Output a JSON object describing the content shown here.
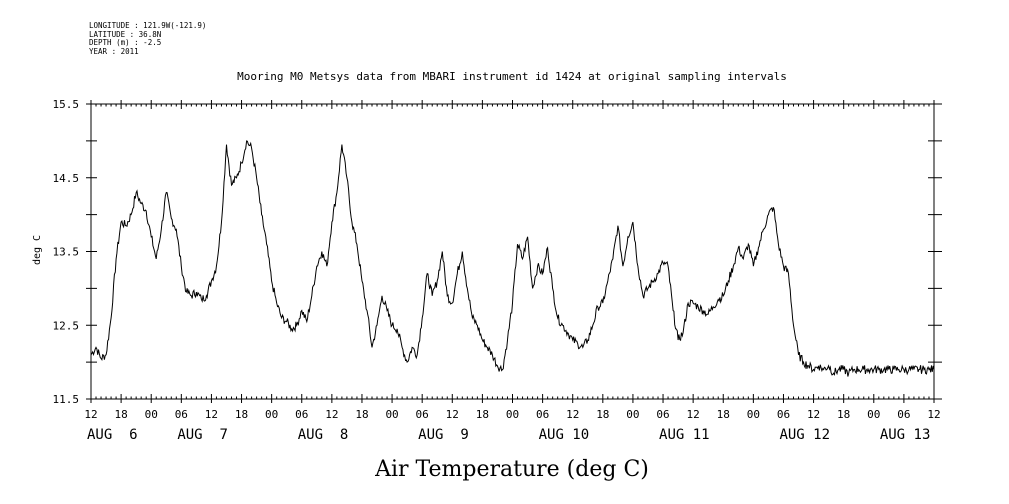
{
  "meta": {
    "longitude": "LONGITUDE : 121.9W(-121.9)",
    "latitude": "LATITUDE : 36.8N",
    "depth": "DEPTH (m) : -2.5",
    "year": "YEAR : 2011"
  },
  "chart_data": {
    "type": "line",
    "title": "Mooring M0 Metsys data from MBARI instrument id 1424 at original sampling intervals",
    "xlabel": "Air Temperature (deg C)",
    "ylabel": "deg C",
    "ylim": [
      11.5,
      15.5
    ],
    "yticks": [
      "15.5",
      "14.5",
      "13.5",
      "12.5",
      "11.5"
    ],
    "xlim_hours": [
      0,
      168
    ],
    "x_unit": "hours since AUG 6 12:00, 2011",
    "hour_ticks": [
      "12",
      "18",
      "00",
      "06",
      "12",
      "18",
      "00",
      "06",
      "12",
      "18",
      "00",
      "06",
      "12",
      "18",
      "00",
      "06",
      "12",
      "18",
      "00",
      "06",
      "12",
      "18",
      "00",
      "06",
      "12",
      "18",
      "00",
      "06",
      "12"
    ],
    "day_labels": [
      {
        "label": "AUG  6",
        "hour": 0
      },
      {
        "label": "AUG  7",
        "hour": 18
      },
      {
        "label": "AUG  8",
        "hour": 42
      },
      {
        "label": "AUG  9",
        "hour": 66
      },
      {
        "label": "AUG 10",
        "hour": 90
      },
      {
        "label": "AUG 11",
        "hour": 114
      },
      {
        "label": "AUG 12",
        "hour": 138
      },
      {
        "label": "AUG 13",
        "hour": 158
      }
    ],
    "grid": false,
    "series": [
      {
        "x": [
          0,
          1,
          2,
          3,
          4,
          5,
          6,
          7,
          8,
          9,
          10,
          11,
          12,
          13,
          14,
          15,
          16,
          17,
          18,
          19,
          20,
          21,
          22,
          23,
          24,
          25,
          26,
          27,
          28,
          29,
          30,
          31,
          32,
          33,
          34,
          35,
          36,
          37,
          38,
          39,
          40,
          41,
          42,
          43,
          44,
          45,
          46,
          47,
          48,
          49,
          50,
          51,
          52,
          53,
          54,
          55,
          56,
          57,
          58,
          59,
          60,
          61,
          62,
          63,
          64,
          65,
          66,
          67,
          68,
          69,
          70,
          71,
          72,
          73,
          74,
          75,
          76,
          77,
          78,
          79,
          80,
          81,
          82,
          83,
          84,
          85,
          86,
          87,
          88,
          89,
          90,
          91,
          92,
          93,
          94,
          95,
          96,
          97,
          98,
          99,
          100,
          101,
          102,
          103,
          104,
          105,
          106,
          107,
          108,
          109,
          110,
          111,
          112,
          113,
          114,
          115,
          116,
          117,
          118,
          119,
          120,
          121,
          122,
          123,
          124,
          125,
          126,
          127,
          128,
          129,
          130,
          131,
          132,
          133,
          134,
          135,
          136,
          137,
          138,
          139,
          140,
          141,
          142,
          143,
          144,
          145,
          146,
          147,
          148,
          149,
          150,
          151,
          152,
          153,
          154,
          155,
          156,
          157,
          158,
          159,
          160,
          161,
          162,
          163,
          164,
          165,
          166,
          167,
          168
        ],
        "y": [
          12.1,
          12.2,
          12.05,
          12.1,
          12.6,
          13.4,
          13.9,
          13.85,
          14.0,
          14.3,
          14.15,
          14.05,
          13.7,
          13.4,
          13.8,
          14.3,
          13.95,
          13.8,
          13.3,
          12.95,
          12.9,
          12.95,
          12.85,
          12.9,
          13.1,
          13.3,
          13.9,
          14.95,
          14.4,
          14.5,
          14.7,
          15.0,
          14.9,
          14.5,
          14.0,
          13.6,
          13.1,
          12.8,
          12.6,
          12.55,
          12.45,
          12.5,
          12.7,
          12.55,
          12.9,
          13.3,
          13.5,
          13.3,
          13.9,
          14.3,
          14.95,
          14.5,
          13.9,
          13.6,
          13.1,
          12.7,
          12.2,
          12.5,
          12.9,
          12.7,
          12.5,
          12.45,
          12.2,
          12.0,
          12.2,
          12.1,
          12.6,
          13.2,
          12.9,
          13.1,
          13.5,
          12.9,
          12.8,
          13.2,
          13.5,
          13.0,
          12.6,
          12.5,
          12.3,
          12.2,
          12.1,
          11.95,
          11.9,
          12.3,
          12.8,
          13.6,
          13.4,
          13.7,
          13.0,
          13.3,
          13.2,
          13.55,
          13.0,
          12.6,
          12.5,
          12.4,
          12.3,
          12.25,
          12.2,
          12.3,
          12.5,
          12.75,
          12.8,
          13.1,
          13.4,
          13.85,
          13.3,
          13.7,
          13.9,
          13.3,
          12.9,
          13.0,
          13.1,
          13.2,
          13.35,
          13.3,
          12.7,
          12.3,
          12.4,
          12.8,
          12.8,
          12.75,
          12.7,
          12.65,
          12.75,
          12.85,
          12.9,
          13.1,
          13.3,
          13.55,
          13.4,
          13.6,
          13.3,
          13.55,
          13.8,
          14.0,
          14.1,
          13.6,
          13.3,
          13.2,
          12.5,
          12.1,
          12.0,
          11.95,
          11.9,
          11.95,
          11.9,
          11.95,
          11.85,
          11.9,
          11.9,
          11.85,
          11.9,
          11.9,
          11.9,
          11.9,
          11.9,
          11.9,
          11.9,
          11.9,
          11.9,
          11.9,
          11.9,
          11.9,
          11.9,
          11.9,
          11.9,
          11.9,
          11.9
        ]
      }
    ]
  }
}
